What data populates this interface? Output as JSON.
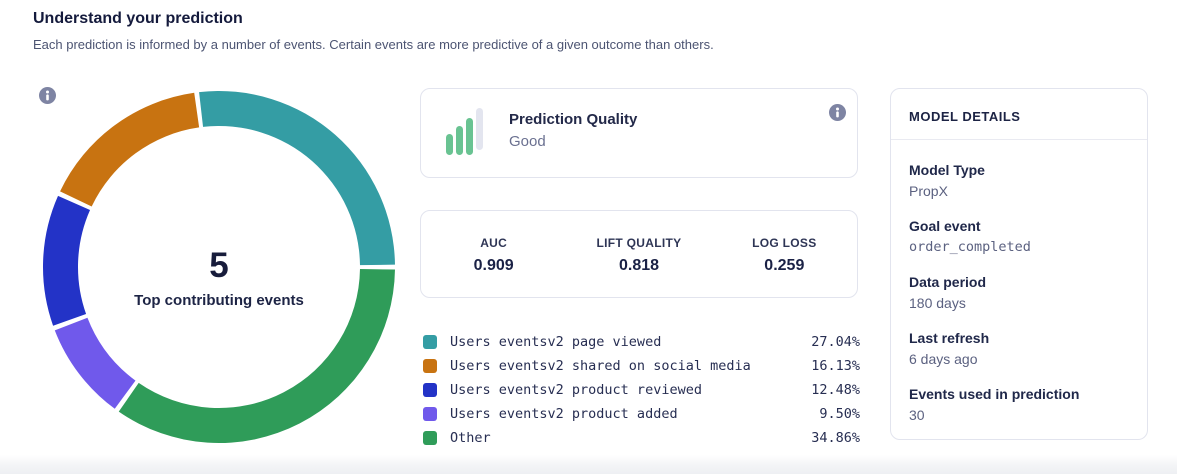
{
  "header": {
    "title": "Understand your prediction",
    "subtitle": "Each prediction is informed by a number of events. Certain events are more predictive of a given outcome than others."
  },
  "chart_data": {
    "type": "pie",
    "style": "donut",
    "center": {
      "value": "5",
      "label": "Top contributing events"
    },
    "segments": [
      {
        "label": "Users eventsv2 page viewed",
        "value": 27.04,
        "percent_label": "27.04%",
        "color": "#349da4"
      },
      {
        "label": "Users eventsv2 shared on social media",
        "value": 16.13,
        "percent_label": "16.13%",
        "color": "#c87311"
      },
      {
        "label": "Users eventsv2 product reviewed",
        "value": 12.48,
        "percent_label": "12.48%",
        "color": "#2333c7"
      },
      {
        "label": "Users eventsv2 product added",
        "value": 9.5,
        "percent_label": "9.50%",
        "color": "#7059eb"
      },
      {
        "label": "Other",
        "value": 34.86,
        "percent_label": "34.86%",
        "color": "#2f9c59"
      }
    ],
    "clockwise_order": [
      0,
      4,
      3,
      2,
      1
    ],
    "start_angle_deg": -7.3,
    "gap_deg": 1.6,
    "outer_radius": 176,
    "inner_radius": 141,
    "legend_position": "bottom-right"
  },
  "quality_card": {
    "title": "Prediction Quality",
    "value": "Good",
    "icon": "bar-chart-icon",
    "bar_colors": {
      "active": "#69c392",
      "inactive": "#e3e5ef"
    }
  },
  "metrics_card": {
    "metrics": [
      {
        "label": "AUC",
        "value": "0.909"
      },
      {
        "label": "LIFT QUALITY",
        "value": "0.818"
      },
      {
        "label": "LOG LOSS",
        "value": "0.259"
      }
    ]
  },
  "model_panel": {
    "title": "MODEL DETAILS",
    "fields": [
      {
        "label": "Model Type",
        "value": "PropX"
      },
      {
        "label": "Goal event",
        "value": "order_completed"
      },
      {
        "label": "Data period",
        "value": "180 days"
      },
      {
        "label": "Last refresh",
        "value": "6 days ago"
      },
      {
        "label": "Events used in prediction",
        "value": "30"
      }
    ]
  }
}
